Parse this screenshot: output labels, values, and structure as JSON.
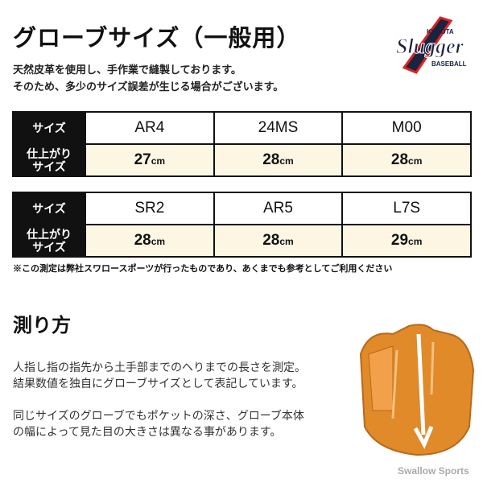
{
  "header": {
    "title": "グローブサイズ（一般用）",
    "desc": [
      "天然皮革を使用し、手作業で縫製しております。",
      "そのため、多少のサイズ誤差が生じる場合がございます。"
    ],
    "logo_text": "KUBOTA Slugger BASEBALL"
  },
  "tables": [
    {
      "size_label": "サイズ",
      "finished_label": [
        "仕上がり",
        "サイズ"
      ],
      "models": [
        "AR4",
        "24MS",
        "M00"
      ],
      "values": [
        "27",
        "28",
        "28"
      ],
      "unit": "cm"
    },
    {
      "size_label": "サイズ",
      "finished_label": [
        "仕上がり",
        "サイズ"
      ],
      "models": [
        "SR2",
        "AR5",
        "L7S"
      ],
      "values": [
        "28",
        "28",
        "29"
      ],
      "unit": "cm"
    }
  ],
  "note": "※この測定は弊社スワロースポーツが行ったものであり、あくまでも参考としてご利用ください",
  "howto": {
    "title": "測り方",
    "paragraphs": [
      [
        "人指し指の指先から土手部までのへりまでの長さを測定。",
        "結果数値を独自にグローブサイズとして表記しています。"
      ],
      [
        "同じサイズのグローブでもポケットの深さ、グローブ本体",
        "の幅によって見た目の大きさは異なる事があります。"
      ]
    ]
  },
  "watermark": "Swallow Sports",
  "colors": {
    "header_cell": "#111111",
    "value_cell": "#fdf6e3",
    "glove": "#e08a2a"
  }
}
